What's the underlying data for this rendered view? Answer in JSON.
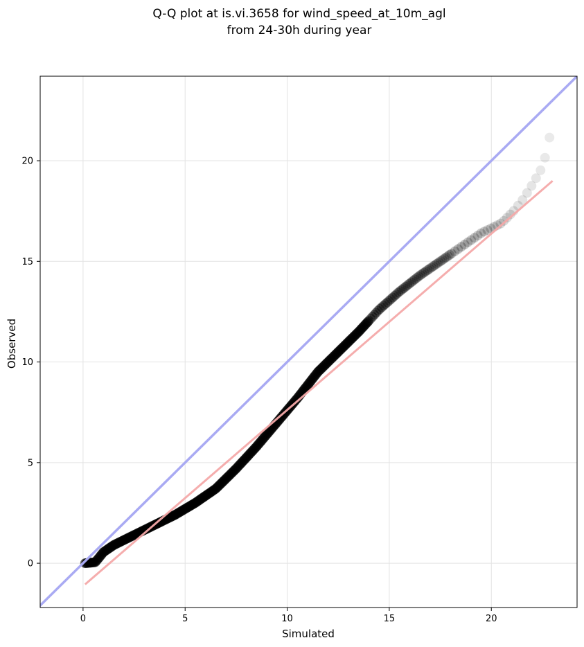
{
  "chart_data": {
    "type": "scatter",
    "title_line1": "Q-Q plot at is.vi.3658 for wind_speed_at_10m_agl",
    "title_line2": "from 24-30h during year",
    "xlabel": "Simulated",
    "ylabel": "Observed",
    "xlim": [
      -2.1,
      24.2
    ],
    "ylim": [
      -2.2,
      24.2
    ],
    "xticks": [
      0,
      5,
      10,
      15,
      20
    ],
    "yticks": [
      0,
      5,
      10,
      15,
      20
    ],
    "xtick_labels": [
      "0",
      "5",
      "10",
      "15",
      "20"
    ],
    "ytick_labels": [
      "0",
      "5",
      "10",
      "15",
      "20"
    ],
    "grid": true,
    "identity_line": {
      "color": "#a9aaf3",
      "from": [
        -2.2,
        -2.2
      ],
      "to": [
        24.2,
        24.2
      ]
    },
    "fit_line": {
      "color": "#f5a9a9",
      "from": [
        0.1,
        -1.05
      ],
      "to": [
        23.0,
        19.0
      ]
    },
    "quantile_curve": [
      [
        0.1,
        0.0
      ],
      [
        0.6,
        0.05
      ],
      [
        1.0,
        0.55
      ],
      [
        1.5,
        0.9
      ],
      [
        2.5,
        1.4
      ],
      [
        3.5,
        1.9
      ],
      [
        4.5,
        2.4
      ],
      [
        5.5,
        3.0
      ],
      [
        6.5,
        3.7
      ],
      [
        7.5,
        4.7
      ],
      [
        8.5,
        5.8
      ],
      [
        9.5,
        7.0
      ],
      [
        10.5,
        8.2
      ],
      [
        11.5,
        9.5
      ],
      [
        12.5,
        10.5
      ],
      [
        13.5,
        11.5
      ],
      [
        14.5,
        12.6
      ],
      [
        15.5,
        13.5
      ],
      [
        16.5,
        14.3
      ],
      [
        17.5,
        15.0
      ],
      [
        18.5,
        15.7
      ],
      [
        19.5,
        16.4
      ],
      [
        20.5,
        16.9
      ],
      [
        21.0,
        17.4
      ],
      [
        21.5,
        18.0
      ],
      [
        22.0,
        18.8
      ],
      [
        22.4,
        19.5
      ],
      [
        22.6,
        20.0
      ],
      [
        22.8,
        21.0
      ],
      [
        23.0,
        21.6
      ]
    ],
    "point_style": {
      "color": "#000000",
      "radius_px": 7
    }
  }
}
